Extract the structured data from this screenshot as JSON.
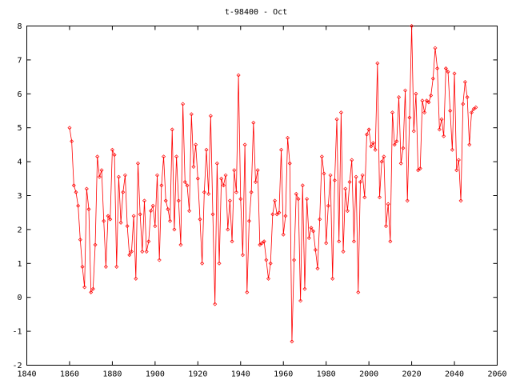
{
  "chart_data": {
    "type": "line",
    "title": "t-98400 - Oct",
    "xlabel": "",
    "ylabel": "",
    "xlim": [
      1840,
      2060
    ],
    "ylim": [
      -2,
      8
    ],
    "xticks": [
      1840,
      1860,
      1880,
      1900,
      1920,
      1940,
      1960,
      1980,
      2000,
      2020,
      2040,
      2060
    ],
    "yticks": [
      -2,
      -1,
      0,
      1,
      2,
      3,
      4,
      5,
      6,
      7,
      8
    ],
    "grid": false,
    "legend": "none",
    "line_color": "#ff0000",
    "marker": "diamond-outline",
    "series": [
      {
        "x": [
          1860,
          1861,
          1862,
          1863,
          1864,
          1865,
          1866,
          1867,
          1868,
          1869,
          1870,
          1871,
          1872,
          1873,
          1874,
          1875,
          1876,
          1877,
          1878,
          1879,
          1880,
          1881,
          1882,
          1883,
          1884,
          1885,
          1886,
          1887,
          1888,
          1889,
          1890,
          1891,
          1892,
          1893,
          1894,
          1895,
          1896,
          1897,
          1898,
          1899,
          1900,
          1901,
          1902,
          1903,
          1904,
          1905,
          1906,
          1907,
          1908,
          1909,
          1910,
          1911,
          1912,
          1913,
          1914,
          1915,
          1916,
          1917,
          1918,
          1919,
          1920,
          1921,
          1922,
          1923,
          1924,
          1925,
          1926,
          1927,
          1928,
          1929,
          1930,
          1931,
          1932,
          1933,
          1934,
          1935,
          1936,
          1937,
          1938,
          1939,
          1940,
          1941,
          1942,
          1943,
          1944,
          1945,
          1946,
          1947,
          1948,
          1949,
          1950,
          1951,
          1952,
          1953,
          1954,
          1955,
          1956,
          1957,
          1958,
          1959,
          1960,
          1961,
          1962,
          1963,
          1964,
          1965,
          1966,
          1967,
          1968,
          1969,
          1970,
          1971,
          1972,
          1973,
          1974,
          1975,
          1976,
          1977,
          1978,
          1979,
          1980,
          1981,
          1982,
          1983,
          1984,
          1985,
          1986,
          1987,
          1988,
          1989,
          1990,
          1991,
          1992,
          1993,
          1994,
          1995,
          1996,
          1997,
          1998,
          1999,
          2000,
          2001,
          2002,
          2003,
          2004,
          2005,
          2006,
          2007,
          2008,
          2009,
          2010,
          2011,
          2012,
          2013,
          2014,
          2015,
          2016,
          2017,
          2018,
          2019,
          2020,
          2021,
          2022,
          2023,
          2024,
          2025,
          2026,
          2027,
          2028,
          2029,
          2030,
          2031,
          2032,
          2033,
          2034,
          2035,
          2036,
          2037,
          2038,
          2039,
          2040,
          2041,
          2042,
          2043,
          2044,
          2045,
          2046,
          2047,
          2048,
          2049,
          2050
        ],
        "y": [
          5.0,
          4.6,
          3.3,
          3.1,
          2.7,
          1.7,
          0.9,
          0.3,
          3.2,
          2.6,
          0.15,
          0.25,
          1.55,
          4.15,
          3.55,
          3.75,
          2.25,
          0.9,
          2.4,
          2.3,
          4.35,
          4.2,
          0.9,
          3.55,
          2.2,
          3.1,
          3.6,
          2.1,
          1.25,
          1.35,
          2.4,
          0.55,
          3.95,
          2.45,
          1.35,
          2.85,
          1.35,
          1.65,
          2.55,
          2.7,
          2.1,
          3.6,
          1.1,
          3.3,
          4.15,
          2.85,
          2.6,
          2.25,
          4.95,
          2.0,
          4.15,
          2.85,
          1.55,
          5.7,
          3.4,
          3.3,
          2.55,
          5.4,
          3.85,
          4.5,
          3.5,
          2.3,
          1.0,
          3.1,
          4.35,
          3.05,
          5.35,
          2.45,
          -0.2,
          3.95,
          1.0,
          3.5,
          3.3,
          3.6,
          2.0,
          2.85,
          1.65,
          3.75,
          3.1,
          6.55,
          2.9,
          1.25,
          4.5,
          0.15,
          2.25,
          3.1,
          5.15,
          3.4,
          3.75,
          1.55,
          1.6,
          1.65,
          1.1,
          0.55,
          1.0,
          2.45,
          2.85,
          2.45,
          2.5,
          4.35,
          1.85,
          2.4,
          4.7,
          3.95,
          -1.3,
          1.1,
          3.05,
          2.9,
          -0.1,
          3.3,
          0.25,
          2.9,
          1.75,
          2.05,
          1.95,
          1.4,
          0.85,
          2.3,
          4.15,
          3.65,
          1.6,
          2.7,
          3.6,
          0.55,
          3.45,
          5.25,
          1.65,
          5.45,
          1.35,
          3.2,
          2.55,
          3.4,
          4.05,
          1.65,
          3.55,
          0.15,
          3.4,
          3.6,
          2.95,
          4.8,
          4.95,
          4.45,
          4.55,
          4.35,
          6.9,
          2.95,
          4.0,
          4.15,
          2.1,
          2.75,
          1.65,
          5.45,
          4.5,
          4.6,
          5.9,
          3.95,
          4.4,
          6.1,
          2.85,
          5.3,
          8.0,
          4.9,
          6.0,
          3.75,
          3.8,
          5.8,
          5.45,
          5.8,
          5.75,
          5.95,
          6.45,
          7.35,
          6.75,
          4.95,
          5.25,
          4.75,
          6.75,
          6.65,
          5.5,
          4.35,
          6.6,
          3.75,
          4.05,
          2.85,
          5.7,
          6.35,
          5.9,
          4.5,
          5.45,
          5.55,
          5.6
        ]
      }
    ]
  }
}
